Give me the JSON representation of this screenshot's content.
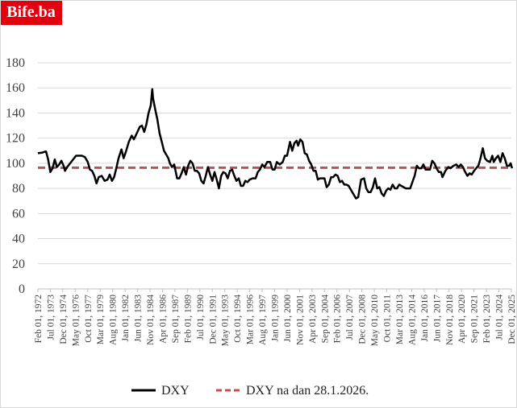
{
  "brand": {
    "label": "Bife.ba",
    "color": "#e3000f"
  },
  "chart_data": {
    "type": "line",
    "title": "",
    "xlabel": "",
    "ylabel": "",
    "ylim": [
      0,
      180
    ],
    "yticks": [
      0,
      20,
      40,
      60,
      80,
      100,
      120,
      140,
      160,
      180
    ],
    "grid": true,
    "legend_position": "bottom",
    "x_ticks": [
      "Feb 01, 1972",
      "Jul 01, 1973",
      "Dec 01, 1974",
      "May 01, 1976",
      "Oct 01, 1977",
      "Mar 01, 1979",
      "Aug 01, 1980",
      "Jan 01, 1982",
      "Jun 01, 1983",
      "Nov 01, 1984",
      "Apr 01, 1986",
      "Sep 01, 1987",
      "Feb 01, 1989",
      "Jul 01, 1990",
      "Dec 01, 1991",
      "May 01, 1993",
      "Oct 01, 1994",
      "Mar 01, 1996",
      "Aug 01, 1997",
      "Jan 01, 1999",
      "Jun 01, 2000",
      "Nov 01, 2001",
      "Apr 01, 2003",
      "Sep 01, 2004",
      "Feb 01, 2006",
      "Jul 01, 2007",
      "Dec 01, 2008",
      "May 01, 2010",
      "Oct 01, 2011",
      "Mar 01, 2013",
      "Aug 01, 2014",
      "Jan 01, 2016",
      "Jun 01, 2017",
      "Nov 01, 2018",
      "Apr 01, 2020",
      "Sep 01, 2021",
      "Feb 01, 2023",
      "Jul 01, 2024",
      "Dec 01, 2025"
    ],
    "series": [
      {
        "name": "DXY",
        "style": "solid",
        "color": "#000000",
        "points": [
          [
            "1972-02",
            108
          ],
          [
            "1972-08",
            108.5
          ],
          [
            "1973-01",
            109.5
          ],
          [
            "1973-04",
            103
          ],
          [
            "1973-07",
            93
          ],
          [
            "1973-10",
            96
          ],
          [
            "1974-01",
            103
          ],
          [
            "1974-04",
            97
          ],
          [
            "1974-07",
            99
          ],
          [
            "1974-10",
            102
          ],
          [
            "1975-01",
            98
          ],
          [
            "1975-03",
            94
          ],
          [
            "1975-06",
            97
          ],
          [
            "1975-10",
            100
          ],
          [
            "1976-02",
            103
          ],
          [
            "1976-06",
            106
          ],
          [
            "1976-10",
            106
          ],
          [
            "1977-02",
            106
          ],
          [
            "1977-06",
            105
          ],
          [
            "1977-10",
            101
          ],
          [
            "1978-01",
            95
          ],
          [
            "1978-04",
            94
          ],
          [
            "1978-07",
            90
          ],
          [
            "1978-10",
            84
          ],
          [
            "1979-01",
            89
          ],
          [
            "1979-05",
            90
          ],
          [
            "1979-09",
            86
          ],
          [
            "1980-01",
            87
          ],
          [
            "1980-04",
            91
          ],
          [
            "1980-07",
            86
          ],
          [
            "1980-10",
            89
          ],
          [
            "1981-01",
            96
          ],
          [
            "1981-04",
            104
          ],
          [
            "1981-08",
            111
          ],
          [
            "1981-11",
            104
          ],
          [
            "1982-02",
            109
          ],
          [
            "1982-06",
            117
          ],
          [
            "1982-10",
            122
          ],
          [
            "1983-01",
            119
          ],
          [
            "1983-05",
            124
          ],
          [
            "1983-09",
            129
          ],
          [
            "1983-12",
            130
          ],
          [
            "1984-03",
            125
          ],
          [
            "1984-06",
            131
          ],
          [
            "1984-09",
            140
          ],
          [
            "1984-12",
            146
          ],
          [
            "1985-02",
            159
          ],
          [
            "1985-03",
            152
          ],
          [
            "1985-06",
            143
          ],
          [
            "1985-09",
            135
          ],
          [
            "1985-12",
            124
          ],
          [
            "1986-03",
            117
          ],
          [
            "1986-06",
            110
          ],
          [
            "1986-09",
            107
          ],
          [
            "1986-12",
            104
          ],
          [
            "1987-02",
            100
          ],
          [
            "1987-05",
            97
          ],
          [
            "1987-08",
            99
          ],
          [
            "1987-12",
            88
          ],
          [
            "1988-03",
            88
          ],
          [
            "1988-06",
            92
          ],
          [
            "1988-09",
            97
          ],
          [
            "1988-12",
            91
          ],
          [
            "1989-03",
            98
          ],
          [
            "1989-06",
            102
          ],
          [
            "1989-09",
            100
          ],
          [
            "1989-12",
            94
          ],
          [
            "1990-03",
            94
          ],
          [
            "1990-06",
            92
          ],
          [
            "1990-09",
            86
          ],
          [
            "1990-12",
            84
          ],
          [
            "1991-03",
            90
          ],
          [
            "1991-06",
            97
          ],
          [
            "1991-09",
            91
          ],
          [
            "1991-12",
            86
          ],
          [
            "1992-03",
            93
          ],
          [
            "1992-06",
            87
          ],
          [
            "1992-09",
            80
          ],
          [
            "1992-12",
            90
          ],
          [
            "1993-03",
            93
          ],
          [
            "1993-06",
            92
          ],
          [
            "1993-09",
            88
          ],
          [
            "1993-12",
            94
          ],
          [
            "1994-03",
            95
          ],
          [
            "1994-06",
            90
          ],
          [
            "1994-09",
            86
          ],
          [
            "1994-12",
            88
          ],
          [
            "1995-03",
            82
          ],
          [
            "1995-06",
            82
          ],
          [
            "1995-09",
            86
          ],
          [
            "1995-12",
            85
          ],
          [
            "1996-03",
            87
          ],
          [
            "1996-07",
            88
          ],
          [
            "1996-11",
            88
          ],
          [
            "1997-02",
            93
          ],
          [
            "1997-05",
            95
          ],
          [
            "1997-08",
            99
          ],
          [
            "1997-11",
            97
          ],
          [
            "1998-03",
            101
          ],
          [
            "1998-07",
            101
          ],
          [
            "1998-10",
            95
          ],
          [
            "1999-01",
            95
          ],
          [
            "1999-04",
            101
          ],
          [
            "1999-08",
            99
          ],
          [
            "1999-12",
            101
          ],
          [
            "2000-03",
            106
          ],
          [
            "2000-06",
            106
          ],
          [
            "2000-10",
            117
          ],
          [
            "2001-01",
            110
          ],
          [
            "2001-04",
            116
          ],
          [
            "2001-07",
            118
          ],
          [
            "2001-09",
            114
          ],
          [
            "2001-12",
            119
          ],
          [
            "2002-03",
            117
          ],
          [
            "2002-06",
            108
          ],
          [
            "2002-09",
            107
          ],
          [
            "2002-12",
            102
          ],
          [
            "2003-03",
            99
          ],
          [
            "2003-06",
            94
          ],
          [
            "2003-09",
            94
          ],
          [
            "2003-12",
            87
          ],
          [
            "2004-03",
            88
          ],
          [
            "2004-06",
            88
          ],
          [
            "2004-09",
            88
          ],
          [
            "2004-12",
            81
          ],
          [
            "2005-03",
            83
          ],
          [
            "2005-06",
            89
          ],
          [
            "2005-09",
            89
          ],
          [
            "2005-12",
            91
          ],
          [
            "2006-03",
            90
          ],
          [
            "2006-06",
            85
          ],
          [
            "2006-09",
            86
          ],
          [
            "2006-12",
            83
          ],
          [
            "2007-03",
            83
          ],
          [
            "2007-06",
            82
          ],
          [
            "2007-09",
            79
          ],
          [
            "2007-12",
            76
          ],
          [
            "2008-04",
            72
          ],
          [
            "2008-07",
            73
          ],
          [
            "2008-11",
            87
          ],
          [
            "2009-03",
            88
          ],
          [
            "2009-06",
            80
          ],
          [
            "2009-09",
            77
          ],
          [
            "2009-12",
            77
          ],
          [
            "2010-03",
            81
          ],
          [
            "2010-06",
            88
          ],
          [
            "2010-09",
            80
          ],
          [
            "2010-12",
            81
          ],
          [
            "2011-03",
            76
          ],
          [
            "2011-06",
            74
          ],
          [
            "2011-09",
            78
          ],
          [
            "2011-12",
            80
          ],
          [
            "2012-03",
            79
          ],
          [
            "2012-06",
            83
          ],
          [
            "2012-09",
            80
          ],
          [
            "2012-12",
            80
          ],
          [
            "2013-03",
            83
          ],
          [
            "2013-06",
            82
          ],
          [
            "2013-09",
            81
          ],
          [
            "2013-12",
            80
          ],
          [
            "2014-03",
            80
          ],
          [
            "2014-06",
            80
          ],
          [
            "2014-09",
            85
          ],
          [
            "2014-12",
            90
          ],
          [
            "2015-03",
            98
          ],
          [
            "2015-06",
            96
          ],
          [
            "2015-09",
            96
          ],
          [
            "2015-12",
            99
          ],
          [
            "2016-03",
            95
          ],
          [
            "2016-06",
            95
          ],
          [
            "2016-09",
            95
          ],
          [
            "2016-12",
            102
          ],
          [
            "2017-03",
            100
          ],
          [
            "2017-06",
            96
          ],
          [
            "2017-09",
            93
          ],
          [
            "2017-12",
            93
          ],
          [
            "2018-02",
            89
          ],
          [
            "2018-06",
            94
          ],
          [
            "2018-10",
            97
          ],
          [
            "2019-01",
            96
          ],
          [
            "2019-05",
            98
          ],
          [
            "2019-09",
            99
          ],
          [
            "2019-12",
            97
          ],
          [
            "2020-03",
            99
          ],
          [
            "2020-06",
            97
          ],
          [
            "2020-09",
            93
          ],
          [
            "2020-12",
            90
          ],
          [
            "2021-03",
            92
          ],
          [
            "2021-06",
            91
          ],
          [
            "2021-09",
            94
          ],
          [
            "2021-12",
            96
          ],
          [
            "2022-03",
            98
          ],
          [
            "2022-06",
            104
          ],
          [
            "2022-09",
            112
          ],
          [
            "2022-12",
            104
          ],
          [
            "2023-03",
            102
          ],
          [
            "2023-07",
            101
          ],
          [
            "2023-10",
            106
          ],
          [
            "2023-12",
            101
          ],
          [
            "2024-03",
            104
          ],
          [
            "2024-06",
            106
          ],
          [
            "2024-09",
            101
          ],
          [
            "2024-12",
            108
          ],
          [
            "2025-03",
            104
          ],
          [
            "2025-06",
            98
          ],
          [
            "2025-09",
            98
          ],
          [
            "2025-11",
            100
          ],
          [
            "2026-01",
            96
          ]
        ]
      },
      {
        "name": "DXY na dan 28.1.2026.",
        "style": "dashed",
        "color": "#c0504d",
        "points": [
          [
            "1972-02",
            96.5
          ],
          [
            "2026-01",
            96.5
          ]
        ]
      }
    ]
  }
}
